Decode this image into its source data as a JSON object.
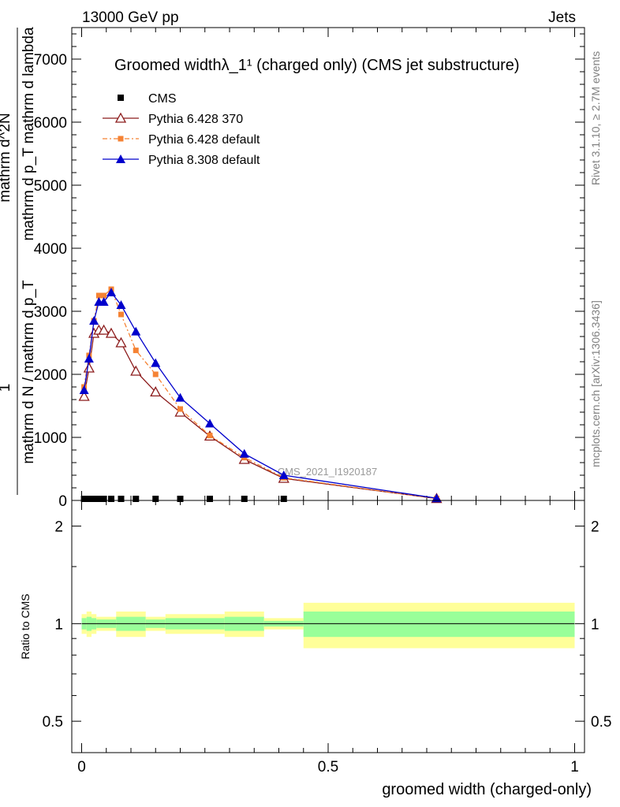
{
  "header": {
    "left": "13000 GeV pp",
    "right": "Jets"
  },
  "side_labels": {
    "rivet": "Rivet 3.1.10, ≥ 2.7M events",
    "mcplots": "mcplots.cern.ch [arXiv:1306.3436]"
  },
  "ylabel": {
    "numerator": "1",
    "denominator": "mathrm d N / mathrm d p_T",
    "right_num": "mathrm d^2N",
    "right_den": "mathrm d p_T mathrm d lambda"
  },
  "colors": {
    "cms": "#000000",
    "p6_370": "#8b1a1a",
    "p6_default": "#f58233",
    "p8_default": "#0000cc",
    "band_inner": "#99ff99",
    "band_outer": "#ffff99"
  },
  "chart_data": [
    {
      "type": "line",
      "title": "Groomed widthλ_1¹ (charged only) (CMS jet substructure)",
      "watermark": "CMS_2021_I1920187",
      "xlim": [
        -0.02,
        1.02
      ],
      "ylim": [
        0,
        7500
      ],
      "y_ticks": [
        {
          "v": 0,
          "label": "0"
        },
        {
          "v": 1000,
          "label": "1000"
        },
        {
          "v": 2000,
          "label": "2000"
        },
        {
          "v": 3000,
          "label": "3000"
        },
        {
          "v": 4000,
          "label": "4000"
        },
        {
          "v": 5000,
          "label": "5000"
        },
        {
          "v": 6000,
          "label": "6000"
        },
        {
          "v": 7000,
          "label": "7000"
        }
      ],
      "legend_position": "top-left",
      "series": [
        {
          "name": "CMS",
          "key": "cms",
          "marker": "square",
          "x": [
            0.005,
            0.015,
            0.025,
            0.035,
            0.045,
            0.06,
            0.08,
            0.11,
            0.15,
            0.2,
            0.26,
            0.33,
            0.41
          ],
          "y": [
            0,
            0,
            0,
            0,
            0,
            0,
            0,
            0,
            0,
            0,
            0,
            0,
            0
          ]
        },
        {
          "name": "Pythia 6.428 370",
          "key": "p6_370",
          "marker": "triangle-open",
          "x": [
            0.005,
            0.015,
            0.025,
            0.035,
            0.045,
            0.06,
            0.08,
            0.11,
            0.15,
            0.2,
            0.26,
            0.33,
            0.41,
            0.72
          ],
          "y": [
            1650,
            2100,
            2650,
            2700,
            2700,
            2650,
            2500,
            2050,
            1720,
            1400,
            1020,
            650,
            350,
            30
          ]
        },
        {
          "name": "Pythia 6.428 default",
          "key": "p6_default",
          "marker": "square-small",
          "dash": "6,3,2,3",
          "x": [
            0.005,
            0.015,
            0.025,
            0.035,
            0.045,
            0.06,
            0.08,
            0.11,
            0.15,
            0.2,
            0.26,
            0.33,
            0.41,
            0.72
          ],
          "y": [
            1800,
            2300,
            2850,
            3250,
            3250,
            3350,
            2950,
            2380,
            2000,
            1450,
            1030,
            680,
            360,
            30
          ]
        },
        {
          "name": "Pythia 8.308 default",
          "key": "p8_default",
          "marker": "triangle-filled",
          "x": [
            0.005,
            0.015,
            0.025,
            0.035,
            0.045,
            0.06,
            0.08,
            0.11,
            0.15,
            0.2,
            0.26,
            0.33,
            0.41,
            0.72
          ],
          "y": [
            1750,
            2250,
            2850,
            3150,
            3150,
            3300,
            3100,
            2680,
            2180,
            1630,
            1220,
            740,
            400,
            35
          ]
        }
      ]
    },
    {
      "type": "area",
      "ylabel": "Ratio to CMS",
      "xlabel": "groomed width (charged-only)",
      "xlim": [
        -0.02,
        1.02
      ],
      "ylim": [
        0.4,
        2.4
      ],
      "y_scale": "log",
      "x_ticks": [
        {
          "v": 0,
          "label": "0"
        },
        {
          "v": 0.5,
          "label": "0.5"
        },
        {
          "v": 1,
          "label": "1"
        }
      ],
      "y_ticks": [
        {
          "v": 0.5,
          "label": "0.5"
        },
        {
          "v": 1,
          "label": "1"
        },
        {
          "v": 2,
          "label": "2"
        }
      ],
      "reference": 1,
      "bands": [
        {
          "x0": 0.0,
          "x1": 0.01,
          "inner": [
            0.96,
            1.04
          ],
          "outer": [
            0.93,
            1.07
          ]
        },
        {
          "x0": 0.01,
          "x1": 0.02,
          "inner": [
            0.95,
            1.05
          ],
          "outer": [
            0.91,
            1.09
          ]
        },
        {
          "x0": 0.02,
          "x1": 0.03,
          "inner": [
            0.96,
            1.04
          ],
          "outer": [
            0.93,
            1.07
          ]
        },
        {
          "x0": 0.03,
          "x1": 0.07,
          "inner": [
            0.97,
            1.03
          ],
          "outer": [
            0.95,
            1.05
          ]
        },
        {
          "x0": 0.07,
          "x1": 0.13,
          "inner": [
            0.95,
            1.05
          ],
          "outer": [
            0.91,
            1.09
          ]
        },
        {
          "x0": 0.13,
          "x1": 0.17,
          "inner": [
            0.97,
            1.03
          ],
          "outer": [
            0.95,
            1.05
          ]
        },
        {
          "x0": 0.17,
          "x1": 0.29,
          "inner": [
            0.96,
            1.04
          ],
          "outer": [
            0.93,
            1.07
          ]
        },
        {
          "x0": 0.29,
          "x1": 0.37,
          "inner": [
            0.95,
            1.05
          ],
          "outer": [
            0.91,
            1.09
          ]
        },
        {
          "x0": 0.37,
          "x1": 0.45,
          "inner": [
            0.98,
            1.02
          ],
          "outer": [
            0.96,
            1.04
          ]
        },
        {
          "x0": 0.45,
          "x1": 1.0,
          "inner": [
            0.91,
            1.09
          ],
          "outer": [
            0.84,
            1.16
          ]
        }
      ]
    }
  ]
}
